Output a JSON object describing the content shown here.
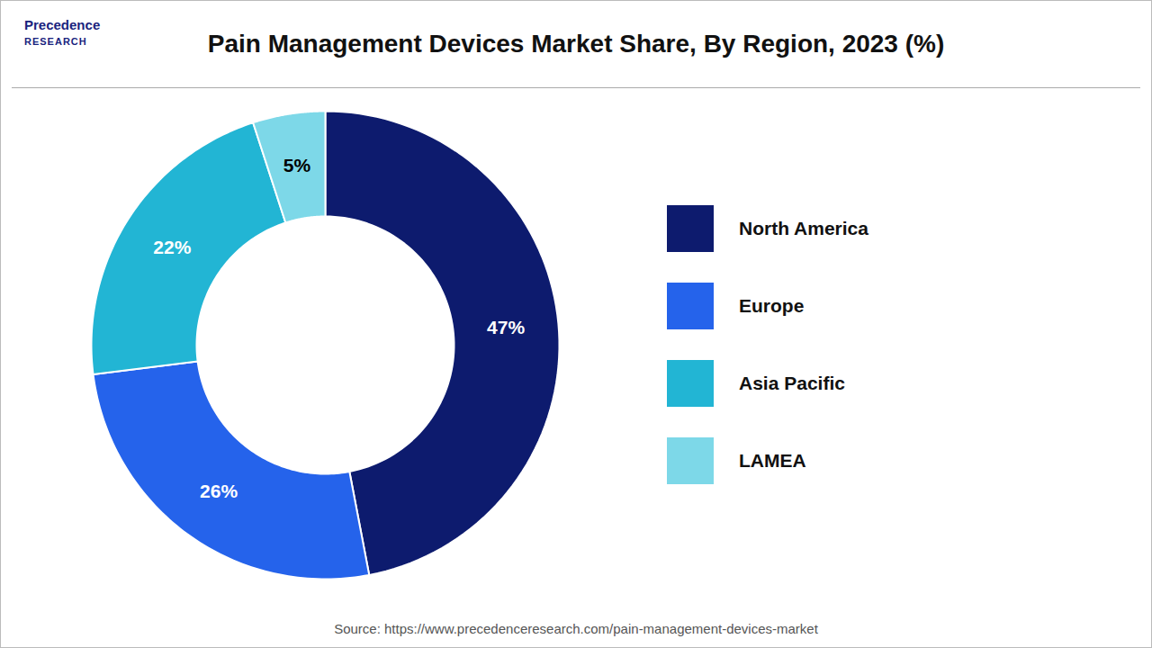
{
  "chart_data": {
    "type": "pie",
    "title": "Pain Management Devices Market Share, By Region, 2023 (%)",
    "categories": [
      "North America",
      "Europe",
      "Asia Pacific",
      "LAMEA"
    ],
    "values": [
      47,
      26,
      22,
      5
    ],
    "value_labels": [
      "47%",
      "26%",
      "22%",
      "5%"
    ],
    "colors": [
      "#0d1b6e",
      "#2563eb",
      "#22b5d4",
      "#7dd8e8"
    ],
    "data_labels": true,
    "legend": "right",
    "annotations": [
      "Precedence",
      "RESEARCH",
      "Source: https://www.precedenceresearch.com/pain-management-devices-market"
    ]
  }
}
